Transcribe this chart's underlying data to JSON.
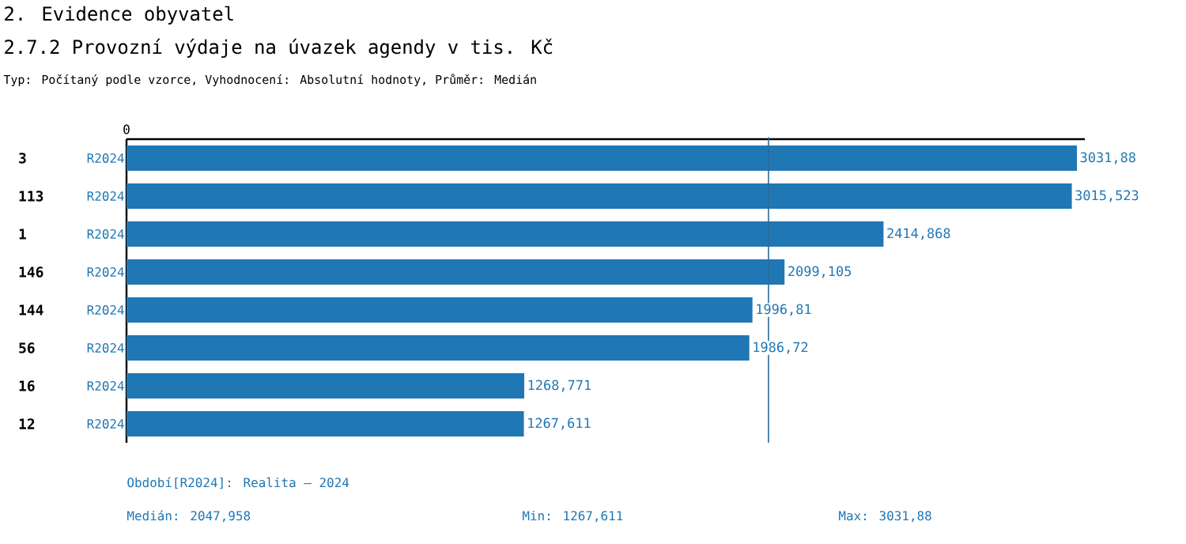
{
  "chart_data": {
    "type": "bar",
    "orientation": "horizontal",
    "title": "2. Evidence obyvatel",
    "subtitle": "2.7.2 Provozní výdaje na úvazek agendy v tis. Kč",
    "categories": [
      "3",
      "113",
      "1",
      "146",
      "144",
      "56",
      "16",
      "12"
    ],
    "series": [
      {
        "name": "R2024",
        "color": "#1f77b4",
        "values": [
          3031.88,
          3015.523,
          2414.868,
          2099.105,
          1996.81,
          1986.72,
          1268.771,
          1267.611
        ],
        "value_labels": [
          "3031,88",
          "3015,523",
          "2414,868",
          "2099,105",
          "1996,81",
          "1986,72",
          "1268,771",
          "1267,611"
        ]
      }
    ],
    "xlim": [
      0,
      3057
    ],
    "ref_lines": [
      {
        "axis": "x",
        "value": 2047.958,
        "color": "#2c6a99"
      }
    ],
    "annotations": [
      "0",
      "Typ: Počítaný podle vzorce, Vyhodnocení: Absolutní hodnoty, Průměr: Medián",
      "Období[R2024]: Realita – 2024",
      "Medián: 2047,958",
      "Min: 1267,611",
      "Max: 3031,88"
    ]
  }
}
